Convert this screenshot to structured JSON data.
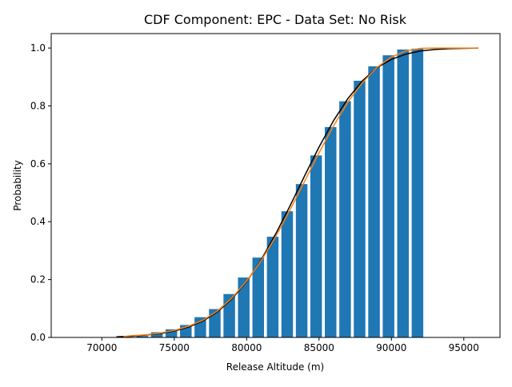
{
  "chart_data": {
    "type": "bar",
    "title": "CDF Component: EPC - Data Set: No Risk",
    "xlabel": "Release Altitude (m)",
    "ylabel": "Probability",
    "xlim": [
      66500,
      97500
    ],
    "ylim": [
      0,
      1.05
    ],
    "xticks": [
      70000,
      75000,
      80000,
      85000,
      90000,
      95000
    ],
    "yticks": [
      0.0,
      0.2,
      0.4,
      0.6,
      0.8,
      1.0
    ],
    "grid": false,
    "bar_color": "#1f77b4",
    "bars": {
      "x": [
        70800,
        71800,
        72800,
        73800,
        74800,
        75800,
        76800,
        77800,
        78800,
        79800,
        80800,
        81800,
        82800,
        83800,
        84800,
        85800,
        86800,
        87800,
        88800,
        89800,
        90800,
        91800
      ],
      "values": [
        0.001,
        0.002,
        0.005,
        0.018,
        0.028,
        0.043,
        0.07,
        0.098,
        0.15,
        0.207,
        0.276,
        0.348,
        0.436,
        0.53,
        0.629,
        0.727,
        0.816,
        0.887,
        0.937,
        0.975,
        0.995,
        0.998
      ]
    },
    "series": [
      {
        "color": "#000000",
        "x": [
          71000,
          72000,
          73000,
          74000,
          75000,
          76000,
          77000,
          78000,
          79000,
          80000,
          81000,
          82000,
          83000,
          84000,
          85000,
          86000,
          87000,
          88000,
          89000,
          90000,
          91000,
          92000,
          93000,
          94000,
          95000,
          96000
        ],
        "y": [
          0.002,
          0.004,
          0.008,
          0.013,
          0.022,
          0.036,
          0.057,
          0.089,
          0.134,
          0.193,
          0.268,
          0.357,
          0.455,
          0.558,
          0.658,
          0.749,
          0.826,
          0.887,
          0.932,
          0.961,
          0.979,
          0.99,
          0.995,
          0.998,
          0.999,
          1.0
        ]
      },
      {
        "color": "#ff7f0e",
        "x": [
          71500,
          72000,
          73000,
          74000,
          75000,
          76000,
          77000,
          78000,
          79000,
          80000,
          81000,
          82000,
          83000,
          84000,
          85000,
          86000,
          87000,
          88000,
          89000,
          90000,
          91000,
          92000,
          93000,
          94000,
          95000,
          96000
        ],
        "y": [
          0.003,
          0.006,
          0.009,
          0.015,
          0.024,
          0.039,
          0.06,
          0.092,
          0.137,
          0.195,
          0.265,
          0.348,
          0.441,
          0.539,
          0.638,
          0.731,
          0.814,
          0.881,
          0.933,
          0.969,
          0.99,
          0.999,
          1.0,
          1.0,
          1.0,
          1.0
        ]
      }
    ]
  }
}
